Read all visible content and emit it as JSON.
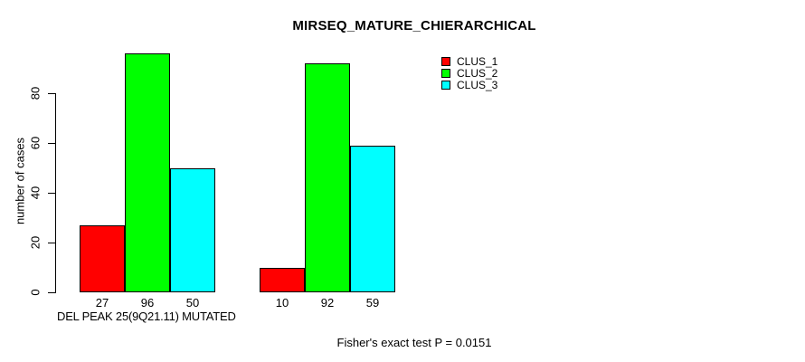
{
  "chart_data": {
    "type": "bar",
    "title": "MIRSEQ_MATURE_CHIERARCHICAL",
    "ylabel": "number of cases",
    "xlabel": "DEL PEAK 25(9Q21.11) MUTATED",
    "annotation": "Fisher's exact test P = 0.0151",
    "ylim": [
      0,
      100
    ],
    "yticks": [
      0,
      20,
      40,
      60,
      80
    ],
    "grid": false,
    "legend_position": "top-right",
    "series": [
      {
        "name": "CLUS_1",
        "color": "#ff0000"
      },
      {
        "name": "CLUS_2",
        "color": "#00ff00"
      },
      {
        "name": "CLUS_3",
        "color": "#00ffff"
      }
    ],
    "groups": [
      {
        "label": "DEL PEAK 25(9Q21.11) MUTATED",
        "values": [
          27,
          96,
          50
        ]
      },
      {
        "label": "",
        "values": [
          10,
          92,
          59
        ]
      }
    ]
  }
}
